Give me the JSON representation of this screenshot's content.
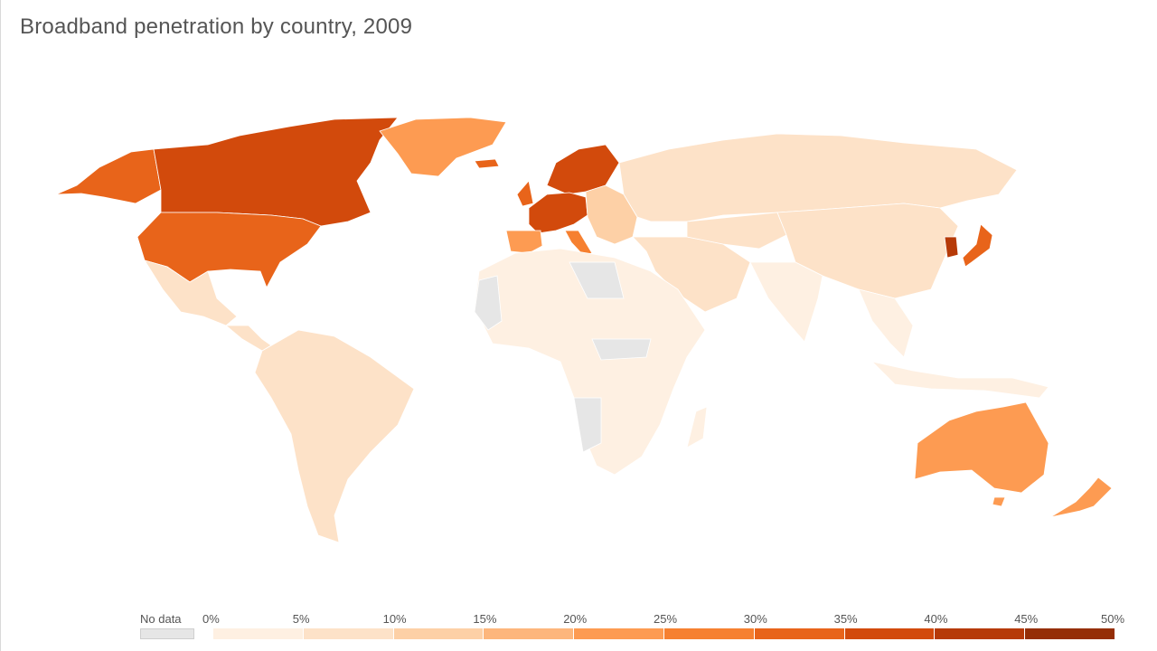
{
  "title": "Broadband penetration by country, 2009",
  "legend": {
    "no_data_label": "No data",
    "no_data_color": "#e6e6e6",
    "tick_labels": [
      "0%",
      "5%",
      "10%",
      "15%",
      "20%",
      "25%",
      "30%",
      "35%",
      "40%",
      "45%",
      "50%"
    ],
    "bin_colors": [
      "#fef0e2",
      "#fde2c8",
      "#fdd0a6",
      "#fdb67c",
      "#fd9b52",
      "#f68030",
      "#e8641a",
      "#d24a0c",
      "#b63a08",
      "#952e06"
    ]
  },
  "map_colors": {
    "canada": "#d24a0c",
    "usa": "#e8641a",
    "alaska": "#e8641a",
    "greenland": "#fd9b52",
    "scandinavia": "#d24a0c",
    "western_europe": "#d24a0c",
    "iberia": "#fd9b52",
    "italy": "#f68030",
    "eastern_europe": "#fdd0a6",
    "russia": "#fde2c8",
    "china": "#fde2c8",
    "japan": "#e8641a",
    "korea": "#b63a08",
    "australia": "#fd9b52",
    "new_zealand": "#fd9b52",
    "mexico": "#fde2c8",
    "south_america": "#fde2c8",
    "africa": "#fef0e2",
    "africa_nodata": "#e6e6e6",
    "middle_east": "#fde2c8",
    "south_asia": "#fef0e2",
    "southeast_asia": "#fef0e2",
    "iceland": "#e8641a",
    "uk": "#e8641a"
  }
}
